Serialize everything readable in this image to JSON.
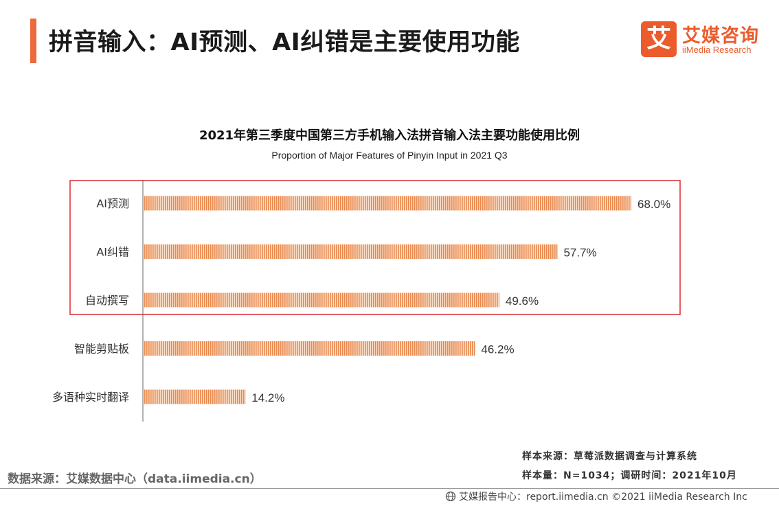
{
  "header": {
    "title": "拼音输入：AI预测、AI纠错是主要使用功能"
  },
  "logo": {
    "mark": "艾",
    "name_cn": "艾媒咨询",
    "name_en": "iiMedia Research"
  },
  "chart_data": {
    "type": "bar",
    "orientation": "horizontal",
    "title": "2021年第三季度中国第三方手机输入法拼音输入法主要功能使用比例",
    "subtitle": "Proportion of Major Features of Pinyin Input in 2021 Q3",
    "categories": [
      "AI预测",
      "AI纠错",
      "自动撰写",
      "智能剪贴板",
      "多语种实时翻译"
    ],
    "values": [
      68.0,
      57.7,
      49.6,
      46.2,
      14.2
    ],
    "value_labels": [
      "68.0%",
      "57.7%",
      "49.6%",
      "46.2%",
      "14.2%"
    ],
    "unit": "%",
    "xlim": [
      0,
      72
    ],
    "grid": false,
    "legend": "none",
    "bar_color": "#e8894f",
    "highlight": {
      "categories": [
        "AI预测",
        "AI纠错",
        "自动撰写"
      ],
      "color": "#d9282f"
    }
  },
  "footer": {
    "data_source": "数据来源：艾媒数据中心（data.iimedia.cn）",
    "sample_source": "样本来源：草莓派数据调查与计算系统",
    "sample_size": "样本量：N=1034；调研时间：2021年10月",
    "report_center": "艾媒报告中心：report.iimedia.cn  ©2021  iiMedia Research  Inc"
  }
}
